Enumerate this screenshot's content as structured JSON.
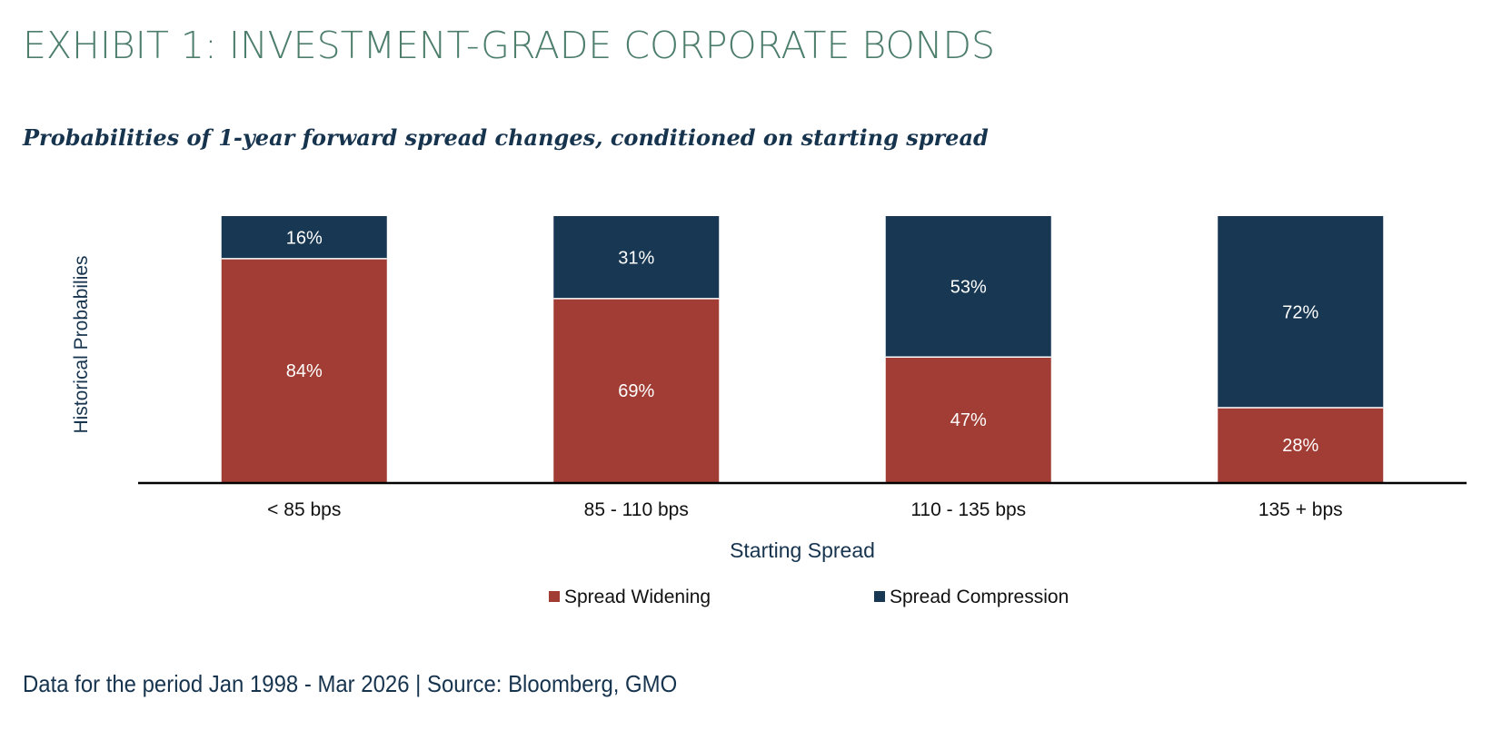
{
  "header": {
    "title": "EXHIBIT 1: INVESTMENT-GRADE CORPORATE BONDS",
    "subtitle": "Probabilities of 1-year forward spread changes, conditioned on starting spread"
  },
  "chart_data": {
    "type": "bar",
    "stacked": true,
    "title": "",
    "xlabel": "Starting Spread",
    "ylabel": "Historical Probabilies",
    "ylim": [
      0,
      100
    ],
    "grid": false,
    "legend_position": "bottom",
    "categories": [
      "< 85 bps",
      "85 - 110 bps",
      "110 - 135 bps",
      "135 + bps"
    ],
    "series": [
      {
        "name": "Spread Widening",
        "color": "#a13d34",
        "values": [
          84,
          69,
          47,
          28
        ],
        "labels": [
          "84%",
          "69%",
          "47%",
          "28%"
        ]
      },
      {
        "name": "Spread Compression",
        "color": "#173752",
        "values": [
          16,
          31,
          53,
          72
        ],
        "labels": [
          "16%",
          "31%",
          "53%",
          "72%"
        ]
      }
    ]
  },
  "footer": {
    "note": "Data for the period Jan 1998 - Mar 2026 | Source: Bloomberg, GMO"
  },
  "colors": {
    "title": "#4d7e6c",
    "text_dark": "#17344f",
    "axis": "#000000"
  }
}
